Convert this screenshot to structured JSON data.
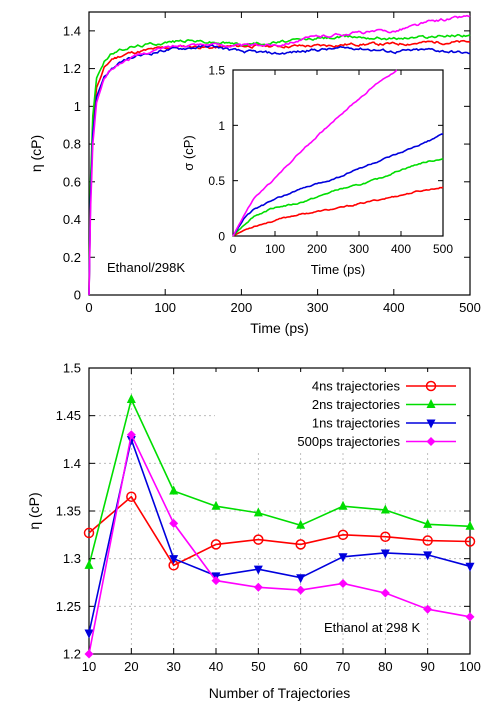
{
  "chart_data": [
    {
      "type": "line",
      "xlabel": "Time (ps)",
      "ylabel": "η (cP)",
      "xlim": [
        0,
        500
      ],
      "ylim": [
        0,
        1.5
      ],
      "xticks": [
        "0",
        "100",
        "200",
        "300",
        "400",
        "500"
      ],
      "yticks": [
        "0",
        "0.2",
        "0.4",
        "0.6",
        "0.8",
        "1",
        "1.2",
        "1.4"
      ],
      "grid": false,
      "annotation": "Ethanol/298K",
      "series": [
        {
          "color": "#ff0000",
          "x": [
            0,
            2,
            5,
            10,
            20,
            30,
            50,
            80,
            100,
            130,
            160,
            200,
            250,
            300,
            350,
            400,
            450,
            500
          ],
          "y": [
            0,
            0.55,
            0.9,
            1.1,
            1.2,
            1.25,
            1.28,
            1.3,
            1.31,
            1.32,
            1.31,
            1.32,
            1.32,
            1.32,
            1.33,
            1.33,
            1.34,
            1.34
          ]
        },
        {
          "color": "#00dd00",
          "x": [
            0,
            2,
            5,
            10,
            20,
            30,
            50,
            80,
            100,
            130,
            160,
            200,
            250,
            300,
            350,
            400,
            450,
            500
          ],
          "y": [
            0,
            0.6,
            0.95,
            1.15,
            1.24,
            1.28,
            1.31,
            1.33,
            1.34,
            1.35,
            1.34,
            1.33,
            1.34,
            1.36,
            1.37,
            1.36,
            1.37,
            1.38
          ]
        },
        {
          "color": "#0000dd",
          "x": [
            0,
            2,
            5,
            10,
            20,
            30,
            50,
            80,
            100,
            130,
            160,
            200,
            250,
            300,
            350,
            400,
            450,
            500
          ],
          "y": [
            0,
            0.5,
            0.85,
            1.05,
            1.16,
            1.2,
            1.25,
            1.28,
            1.3,
            1.31,
            1.32,
            1.29,
            1.28,
            1.3,
            1.31,
            1.29,
            1.3,
            1.28
          ]
        },
        {
          "color": "#ff00ff",
          "x": [
            0,
            2,
            5,
            10,
            20,
            30,
            50,
            80,
            100,
            130,
            160,
            200,
            250,
            300,
            350,
            400,
            450,
            500
          ],
          "y": [
            0,
            0.45,
            0.8,
            1.02,
            1.15,
            1.2,
            1.25,
            1.29,
            1.31,
            1.33,
            1.33,
            1.32,
            1.33,
            1.37,
            1.39,
            1.4,
            1.45,
            1.48
          ]
        }
      ]
    },
    {
      "type": "line",
      "xlabel": "Time (ps)",
      "ylabel": "σ (cP)",
      "xlim": [
        0,
        500
      ],
      "ylim": [
        0,
        1.5
      ],
      "xticks": [
        "0",
        "100",
        "200",
        "300",
        "400",
        "500"
      ],
      "yticks": [
        "0",
        "0.5",
        "1",
        "1.5"
      ],
      "series": [
        {
          "color": "#ff0000",
          "x": [
            0,
            25,
            50,
            100,
            150,
            200,
            250,
            300,
            350,
            400,
            450,
            500
          ],
          "y": [
            0,
            0.05,
            0.09,
            0.14,
            0.19,
            0.22,
            0.25,
            0.29,
            0.33,
            0.37,
            0.41,
            0.44
          ]
        },
        {
          "color": "#00dd00",
          "x": [
            0,
            25,
            50,
            100,
            150,
            200,
            250,
            300,
            350,
            400,
            450,
            500
          ],
          "y": [
            0,
            0.1,
            0.18,
            0.26,
            0.29,
            0.35,
            0.42,
            0.46,
            0.52,
            0.6,
            0.66,
            0.7
          ]
        },
        {
          "color": "#0000dd",
          "x": [
            0,
            25,
            50,
            100,
            150,
            200,
            250,
            300,
            350,
            400,
            450,
            500
          ],
          "y": [
            0,
            0.15,
            0.24,
            0.33,
            0.41,
            0.47,
            0.53,
            0.61,
            0.68,
            0.75,
            0.83,
            0.92
          ]
        },
        {
          "color": "#ff00ff",
          "x": [
            0,
            25,
            50,
            100,
            150,
            200,
            250,
            300,
            350,
            390
          ],
          "y": [
            0,
            0.18,
            0.34,
            0.52,
            0.72,
            0.9,
            1.08,
            1.24,
            1.4,
            1.5
          ]
        }
      ]
    },
    {
      "type": "line",
      "xlabel": "Number of Trajectories",
      "ylabel": "η (cP)",
      "xlim": [
        10,
        100
      ],
      "ylim": [
        1.2,
        1.5
      ],
      "xticks": [
        "10",
        "20",
        "30",
        "40",
        "50",
        "60",
        "70",
        "80",
        "90",
        "100"
      ],
      "yticks": [
        "1.2",
        "1.25",
        "1.3",
        "1.35",
        "1.4",
        "1.45",
        "1.5"
      ],
      "grid": true,
      "legend_position": "top-right",
      "annotation": "Ethanol at 298 K",
      "categories": [
        10,
        20,
        30,
        40,
        50,
        60,
        70,
        80,
        90,
        100
      ],
      "series": [
        {
          "name": "4ns trajectories",
          "color": "#ff0000",
          "marker": "circle",
          "values": [
            1.327,
            1.365,
            1.293,
            1.315,
            1.32,
            1.315,
            1.325,
            1.323,
            1.319,
            1.318
          ]
        },
        {
          "name": "2ns trajectories",
          "color": "#00dd00",
          "marker": "triangle-up",
          "values": [
            1.293,
            1.467,
            1.371,
            1.355,
            1.348,
            1.335,
            1.355,
            1.351,
            1.336,
            1.334
          ]
        },
        {
          "name": "1ns trajectories",
          "color": "#0000dd",
          "marker": "triangle-down",
          "values": [
            1.222,
            1.425,
            1.3,
            1.282,
            1.289,
            1.28,
            1.302,
            1.306,
            1.304,
            1.292
          ]
        },
        {
          "name": "500ps trajectories",
          "color": "#ff00ff",
          "marker": "diamond",
          "values": [
            1.2,
            1.43,
            1.337,
            1.277,
            1.27,
            1.267,
            1.274,
            1.264,
            1.247,
            1.239
          ]
        }
      ]
    }
  ]
}
